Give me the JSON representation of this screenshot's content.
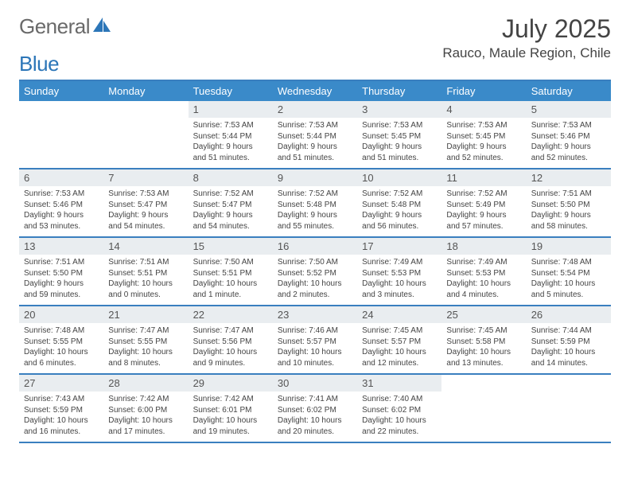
{
  "brand": {
    "text1": "General",
    "text2": "Blue"
  },
  "title": "July 2025",
  "location": "Rauco, Maule Region, Chile",
  "colors": {
    "header_bg": "#3a8ac9",
    "header_border": "#3a7fbf",
    "daynum_bg": "#e9edf0",
    "text": "#444444",
    "logo_gray": "#6a6a6a",
    "logo_blue": "#2c76b8"
  },
  "weekdays": [
    "Sunday",
    "Monday",
    "Tuesday",
    "Wednesday",
    "Thursday",
    "Friday",
    "Saturday"
  ],
  "layout": {
    "columns": 7,
    "rows": 5,
    "first_day_column": 2
  },
  "days": [
    {
      "n": 1,
      "sunrise": "7:53 AM",
      "sunset": "5:44 PM",
      "daylight": "9 hours and 51 minutes."
    },
    {
      "n": 2,
      "sunrise": "7:53 AM",
      "sunset": "5:44 PM",
      "daylight": "9 hours and 51 minutes."
    },
    {
      "n": 3,
      "sunrise": "7:53 AM",
      "sunset": "5:45 PM",
      "daylight": "9 hours and 51 minutes."
    },
    {
      "n": 4,
      "sunrise": "7:53 AM",
      "sunset": "5:45 PM",
      "daylight": "9 hours and 52 minutes."
    },
    {
      "n": 5,
      "sunrise": "7:53 AM",
      "sunset": "5:46 PM",
      "daylight": "9 hours and 52 minutes."
    },
    {
      "n": 6,
      "sunrise": "7:53 AM",
      "sunset": "5:46 PM",
      "daylight": "9 hours and 53 minutes."
    },
    {
      "n": 7,
      "sunrise": "7:53 AM",
      "sunset": "5:47 PM",
      "daylight": "9 hours and 54 minutes."
    },
    {
      "n": 8,
      "sunrise": "7:52 AM",
      "sunset": "5:47 PM",
      "daylight": "9 hours and 54 minutes."
    },
    {
      "n": 9,
      "sunrise": "7:52 AM",
      "sunset": "5:48 PM",
      "daylight": "9 hours and 55 minutes."
    },
    {
      "n": 10,
      "sunrise": "7:52 AM",
      "sunset": "5:48 PM",
      "daylight": "9 hours and 56 minutes."
    },
    {
      "n": 11,
      "sunrise": "7:52 AM",
      "sunset": "5:49 PM",
      "daylight": "9 hours and 57 minutes."
    },
    {
      "n": 12,
      "sunrise": "7:51 AM",
      "sunset": "5:50 PM",
      "daylight": "9 hours and 58 minutes."
    },
    {
      "n": 13,
      "sunrise": "7:51 AM",
      "sunset": "5:50 PM",
      "daylight": "9 hours and 59 minutes."
    },
    {
      "n": 14,
      "sunrise": "7:51 AM",
      "sunset": "5:51 PM",
      "daylight": "10 hours and 0 minutes."
    },
    {
      "n": 15,
      "sunrise": "7:50 AM",
      "sunset": "5:51 PM",
      "daylight": "10 hours and 1 minute."
    },
    {
      "n": 16,
      "sunrise": "7:50 AM",
      "sunset": "5:52 PM",
      "daylight": "10 hours and 2 minutes."
    },
    {
      "n": 17,
      "sunrise": "7:49 AM",
      "sunset": "5:53 PM",
      "daylight": "10 hours and 3 minutes."
    },
    {
      "n": 18,
      "sunrise": "7:49 AM",
      "sunset": "5:53 PM",
      "daylight": "10 hours and 4 minutes."
    },
    {
      "n": 19,
      "sunrise": "7:48 AM",
      "sunset": "5:54 PM",
      "daylight": "10 hours and 5 minutes."
    },
    {
      "n": 20,
      "sunrise": "7:48 AM",
      "sunset": "5:55 PM",
      "daylight": "10 hours and 6 minutes."
    },
    {
      "n": 21,
      "sunrise": "7:47 AM",
      "sunset": "5:55 PM",
      "daylight": "10 hours and 8 minutes."
    },
    {
      "n": 22,
      "sunrise": "7:47 AM",
      "sunset": "5:56 PM",
      "daylight": "10 hours and 9 minutes."
    },
    {
      "n": 23,
      "sunrise": "7:46 AM",
      "sunset": "5:57 PM",
      "daylight": "10 hours and 10 minutes."
    },
    {
      "n": 24,
      "sunrise": "7:45 AM",
      "sunset": "5:57 PM",
      "daylight": "10 hours and 12 minutes."
    },
    {
      "n": 25,
      "sunrise": "7:45 AM",
      "sunset": "5:58 PM",
      "daylight": "10 hours and 13 minutes."
    },
    {
      "n": 26,
      "sunrise": "7:44 AM",
      "sunset": "5:59 PM",
      "daylight": "10 hours and 14 minutes."
    },
    {
      "n": 27,
      "sunrise": "7:43 AM",
      "sunset": "5:59 PM",
      "daylight": "10 hours and 16 minutes."
    },
    {
      "n": 28,
      "sunrise": "7:42 AM",
      "sunset": "6:00 PM",
      "daylight": "10 hours and 17 minutes."
    },
    {
      "n": 29,
      "sunrise": "7:42 AM",
      "sunset": "6:01 PM",
      "daylight": "10 hours and 19 minutes."
    },
    {
      "n": 30,
      "sunrise": "7:41 AM",
      "sunset": "6:02 PM",
      "daylight": "10 hours and 20 minutes."
    },
    {
      "n": 31,
      "sunrise": "7:40 AM",
      "sunset": "6:02 PM",
      "daylight": "10 hours and 22 minutes."
    }
  ],
  "labels": {
    "sunrise": "Sunrise:",
    "sunset": "Sunset:",
    "daylight": "Daylight:"
  }
}
